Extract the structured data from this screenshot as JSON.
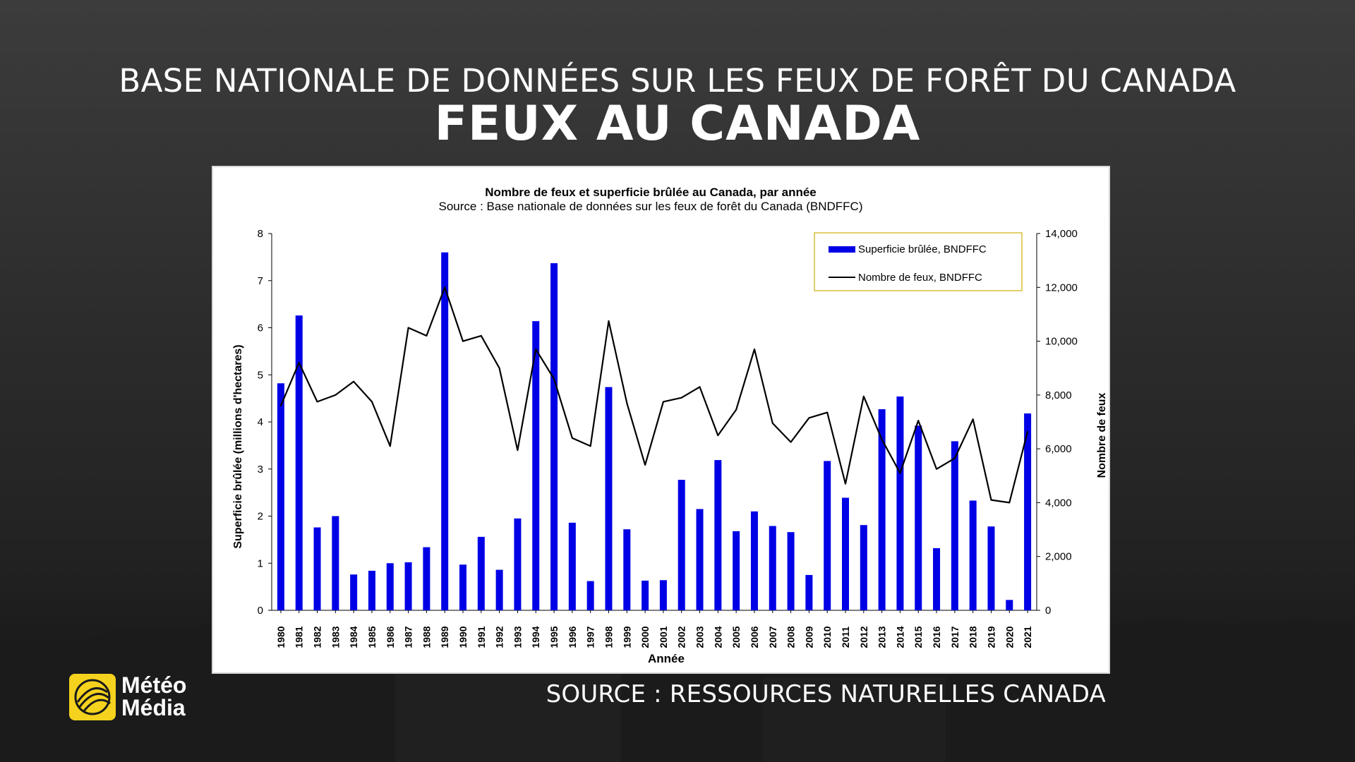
{
  "header": {
    "subtitle": "BASE NATIONALE DE DONNÉES SUR LES FEUX DE FORÊT DU CANADA",
    "title": "FEUX AU CANADA"
  },
  "footer": {
    "source": "SOURCE : RESSOURCES NATURELLES CANADA",
    "logo_line1": "Météo",
    "logo_line2": "Média"
  },
  "colors": {
    "bar": "#0000e6",
    "line": "#000000",
    "legend_border": "#e0c040"
  },
  "chart_data": {
    "type": "bar",
    "title": "Nombre de feux et superficie brûlée au Canada, par année",
    "subtitle": "Source : Base nationale de données sur les feux de forêt du Canada (BNDFFC)",
    "xlabel": "Année",
    "ylabel": "Superficie brûlée (millions d'hectares)",
    "y2label": "Nombre de feux",
    "ylim": [
      0,
      8
    ],
    "y2lim": [
      0,
      14000
    ],
    "yticks": [
      "0",
      "1",
      "2",
      "3",
      "4",
      "5",
      "6",
      "7",
      "8"
    ],
    "y2ticks": [
      "0",
      "2,000",
      "4,000",
      "6,000",
      "8,000",
      "10,000",
      "12,000",
      "14,000"
    ],
    "legend_position": "top-right",
    "categories": [
      "1980",
      "1981",
      "1982",
      "1983",
      "1984",
      "1985",
      "1986",
      "1987",
      "1988",
      "1989",
      "1990",
      "1991",
      "1992",
      "1993",
      "1994",
      "1995",
      "1996",
      "1997",
      "1998",
      "1999",
      "2000",
      "2001",
      "2002",
      "2003",
      "2004",
      "2005",
      "2006",
      "2007",
      "2008",
      "2009",
      "2010",
      "2011",
      "2012",
      "2013",
      "2014",
      "2015",
      "2016",
      "2017",
      "2018",
      "2019",
      "2020",
      "2021"
    ],
    "series": [
      {
        "name": "Superficie brûlée, BNDFFC",
        "type": "bar",
        "axis": "left",
        "values": [
          4.82,
          6.26,
          1.76,
          2.0,
          0.76,
          0.84,
          1.0,
          1.02,
          1.34,
          7.6,
          0.97,
          1.56,
          0.86,
          1.95,
          6.14,
          7.37,
          1.86,
          0.62,
          4.74,
          1.72,
          0.63,
          0.64,
          2.77,
          2.15,
          3.19,
          1.68,
          2.1,
          1.79,
          1.66,
          0.75,
          3.17,
          2.39,
          1.81,
          4.27,
          4.54,
          3.92,
          1.32,
          3.59,
          2.33,
          1.78,
          0.22,
          4.18
        ]
      },
      {
        "name": "Nombre de feux, BNDFFC",
        "type": "line",
        "axis": "right",
        "values": [
          7600,
          9200,
          7750,
          8000,
          8500,
          7750,
          6100,
          10500,
          10200,
          12000,
          10000,
          10200,
          9000,
          5950,
          9700,
          8600,
          6400,
          6100,
          10750,
          7700,
          5400,
          7750,
          7900,
          8300,
          6500,
          7450,
          9700,
          6950,
          6250,
          7150,
          7350,
          4700,
          7950,
          6350,
          5100,
          7050,
          5250,
          5650,
          7100,
          4100,
          4000,
          6650
        ]
      }
    ]
  }
}
